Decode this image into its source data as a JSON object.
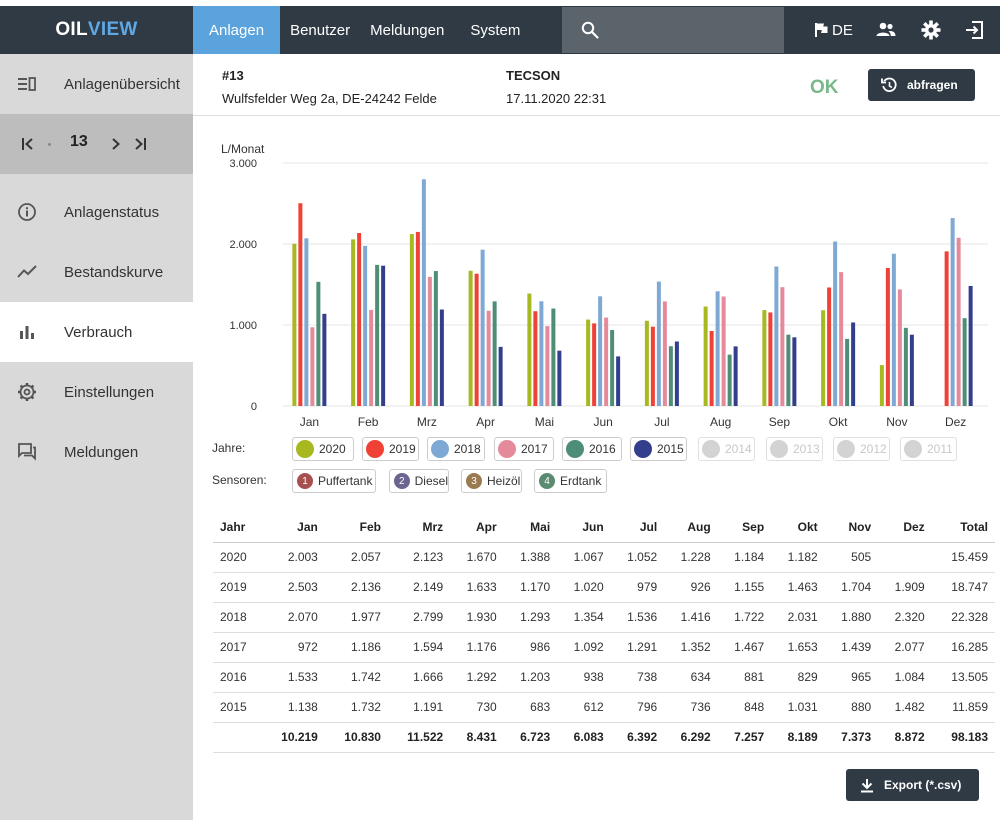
{
  "app": {
    "logo_a": "OIL",
    "logo_b": "VIEW"
  },
  "nav": {
    "tabs": [
      "Anlagen",
      "Benutzer",
      "Meldungen",
      "System"
    ],
    "active": 0
  },
  "topbar": {
    "lang": "DE"
  },
  "sidebar": {
    "items": [
      {
        "label": "Anlagenübersicht",
        "icon": "list-icon"
      },
      {
        "label": "Anlagenstatus",
        "icon": "info-icon"
      },
      {
        "label": "Bestandskurve",
        "icon": "trend-icon"
      },
      {
        "label": "Verbrauch",
        "icon": "bar-chart-icon"
      },
      {
        "label": "Einstellungen",
        "icon": "gear-icon"
      },
      {
        "label": "Meldungen",
        "icon": "message-icon"
      }
    ],
    "pager": {
      "current": "13"
    }
  },
  "plant": {
    "id": "#13",
    "address": "Wulfsfelder Weg 2a, DE-24242 Felde",
    "vendor": "TECSON",
    "timestamp": "17.11.2020 22:31",
    "status": "OK",
    "query_label": "abfragen"
  },
  "legend": {
    "years_label": "Jahre:",
    "years": [
      {
        "label": "2020",
        "color": "#a8b820",
        "on": true
      },
      {
        "label": "2019",
        "color": "#ef4136",
        "on": true
      },
      {
        "label": "2018",
        "color": "#7ea9d4",
        "on": true
      },
      {
        "label": "2017",
        "color": "#e58a9b",
        "on": true
      },
      {
        "label": "2016",
        "color": "#4e8e76",
        "on": true
      },
      {
        "label": "2015",
        "color": "#333f8c",
        "on": true
      },
      {
        "label": "2014",
        "color": "#d3d3d3",
        "on": false
      },
      {
        "label": "2013",
        "color": "#d3d3d3",
        "on": false
      },
      {
        "label": "2012",
        "color": "#d3d3d3",
        "on": false
      },
      {
        "label": "2011",
        "color": "#d3d3d3",
        "on": false
      }
    ],
    "sensors_label": "Sensoren:",
    "sensors": [
      {
        "num": "1",
        "label": "Puffertank",
        "color": "#a85050"
      },
      {
        "num": "2",
        "label": "Diesel",
        "color": "#6b6690"
      },
      {
        "num": "3",
        "label": "Heizöl",
        "color": "#9a7a50"
      },
      {
        "num": "4",
        "label": "Erdtank",
        "color": "#5a8a70"
      }
    ]
  },
  "chart_data": {
    "type": "bar",
    "ylabel": "L/Monat",
    "ylim": [
      0,
      3000
    ],
    "yticks": [
      "0",
      "1.000",
      "2.000",
      "3.000"
    ],
    "categories": [
      "Jan",
      "Feb",
      "Mrz",
      "Apr",
      "Mai",
      "Jun",
      "Jul",
      "Aug",
      "Sep",
      "Okt",
      "Nov",
      "Dez"
    ],
    "series": [
      {
        "name": "2020",
        "color": "#a8b820",
        "values": [
          2003,
          2057,
          2123,
          1670,
          1388,
          1067,
          1052,
          1228,
          1184,
          1182,
          505,
          null
        ]
      },
      {
        "name": "2019",
        "color": "#ef4136",
        "values": [
          2503,
          2136,
          2149,
          1633,
          1170,
          1020,
          979,
          926,
          1155,
          1463,
          1704,
          1909
        ]
      },
      {
        "name": "2018",
        "color": "#7ea9d4",
        "values": [
          2070,
          1977,
          2799,
          1930,
          1293,
          1354,
          1536,
          1416,
          1722,
          2031,
          1880,
          2320
        ]
      },
      {
        "name": "2017",
        "color": "#e58a9b",
        "values": [
          972,
          1186,
          1594,
          1176,
          986,
          1092,
          1291,
          1352,
          1467,
          1653,
          1439,
          2077
        ]
      },
      {
        "name": "2016",
        "color": "#4e8e76",
        "values": [
          1533,
          1742,
          1666,
          1292,
          1203,
          938,
          738,
          634,
          881,
          829,
          965,
          1084
        ]
      },
      {
        "name": "2015",
        "color": "#333f8c",
        "values": [
          1138,
          1732,
          1191,
          730,
          683,
          612,
          796,
          736,
          848,
          1031,
          880,
          1482
        ]
      }
    ]
  },
  "table": {
    "headers": [
      "Jahr",
      "Jan",
      "Feb",
      "Mrz",
      "Apr",
      "Mai",
      "Jun",
      "Jul",
      "Aug",
      "Sep",
      "Okt",
      "Nov",
      "Dez",
      "Total"
    ],
    "rows": [
      [
        "2020",
        "2.003",
        "2.057",
        "2.123",
        "1.670",
        "1.388",
        "1.067",
        "1.052",
        "1.228",
        "1.184",
        "1.182",
        "505",
        "",
        "15.459"
      ],
      [
        "2019",
        "2.503",
        "2.136",
        "2.149",
        "1.633",
        "1.170",
        "1.020",
        "979",
        "926",
        "1.155",
        "1.463",
        "1.704",
        "1.909",
        "18.747"
      ],
      [
        "2018",
        "2.070",
        "1.977",
        "2.799",
        "1.930",
        "1.293",
        "1.354",
        "1.536",
        "1.416",
        "1.722",
        "2.031",
        "1.880",
        "2.320",
        "22.328"
      ],
      [
        "2017",
        "972",
        "1.186",
        "1.594",
        "1.176",
        "986",
        "1.092",
        "1.291",
        "1.352",
        "1.467",
        "1.653",
        "1.439",
        "2.077",
        "16.285"
      ],
      [
        "2016",
        "1.533",
        "1.742",
        "1.666",
        "1.292",
        "1.203",
        "938",
        "738",
        "634",
        "881",
        "829",
        "965",
        "1.084",
        "13.505"
      ],
      [
        "2015",
        "1.138",
        "1.732",
        "1.191",
        "730",
        "683",
        "612",
        "796",
        "736",
        "848",
        "1.031",
        "880",
        "1.482",
        "11.859"
      ]
    ],
    "totals": [
      "",
      "10.219",
      "10.830",
      "11.522",
      "8.431",
      "6.723",
      "6.083",
      "6.392",
      "6.292",
      "7.257",
      "8.189",
      "7.373",
      "8.872",
      "98.183"
    ]
  },
  "export_label": "Export (*.csv)"
}
